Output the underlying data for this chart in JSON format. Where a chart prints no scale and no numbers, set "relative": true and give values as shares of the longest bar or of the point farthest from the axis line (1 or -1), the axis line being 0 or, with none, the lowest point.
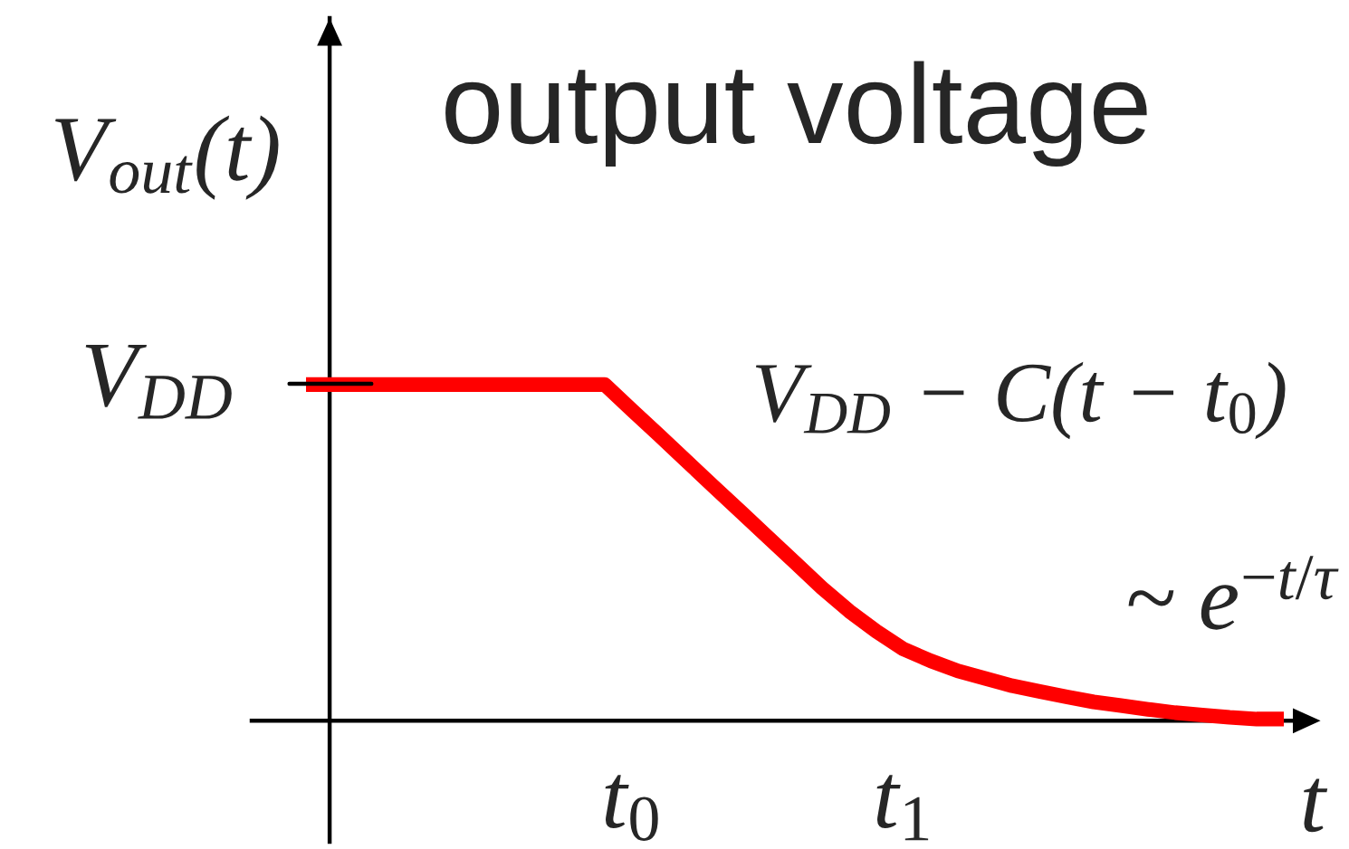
{
  "chart_data": {
    "type": "line",
    "title": "output voltage",
    "xlabel": "t",
    "ylabel": "V$_{out}$(t)",
    "relative": true,
    "categories": [
      null,
      null,
      null,
      null,
      null,
      null,
      null,
      null,
      null,
      null,
      null,
      null,
      "t$_{0}$",
      null,
      null,
      null,
      null,
      null,
      null,
      null,
      null,
      null,
      "t$_{1}$",
      null,
      null,
      null,
      null,
      null,
      null,
      null,
      null,
      null,
      null,
      null,
      null,
      null,
      null
    ],
    "series": [
      {
        "color": "#ff0000",
        "values": [
          1,
          1,
          1,
          1,
          1,
          1,
          1,
          1,
          1,
          1,
          1,
          1,
          0.924,
          0.849,
          0.773,
          0.697,
          0.622,
          0.546,
          0.471,
          0.395,
          0.326,
          0.266,
          0.213,
          0.178,
          0.148,
          0.126,
          0.104,
          0.087,
          0.071,
          0.056,
          0.045,
          0.034,
          0.024,
          0.017,
          0.01,
          0.005,
          0.005
        ]
      }
    ],
    "annotations": [
      "V$_{DD}$",
      "V$_{DD}$ − C(t − t$_{0}$)",
      "~ e$^{−t/τ}$"
    ],
    "line_style": "solid"
  }
}
